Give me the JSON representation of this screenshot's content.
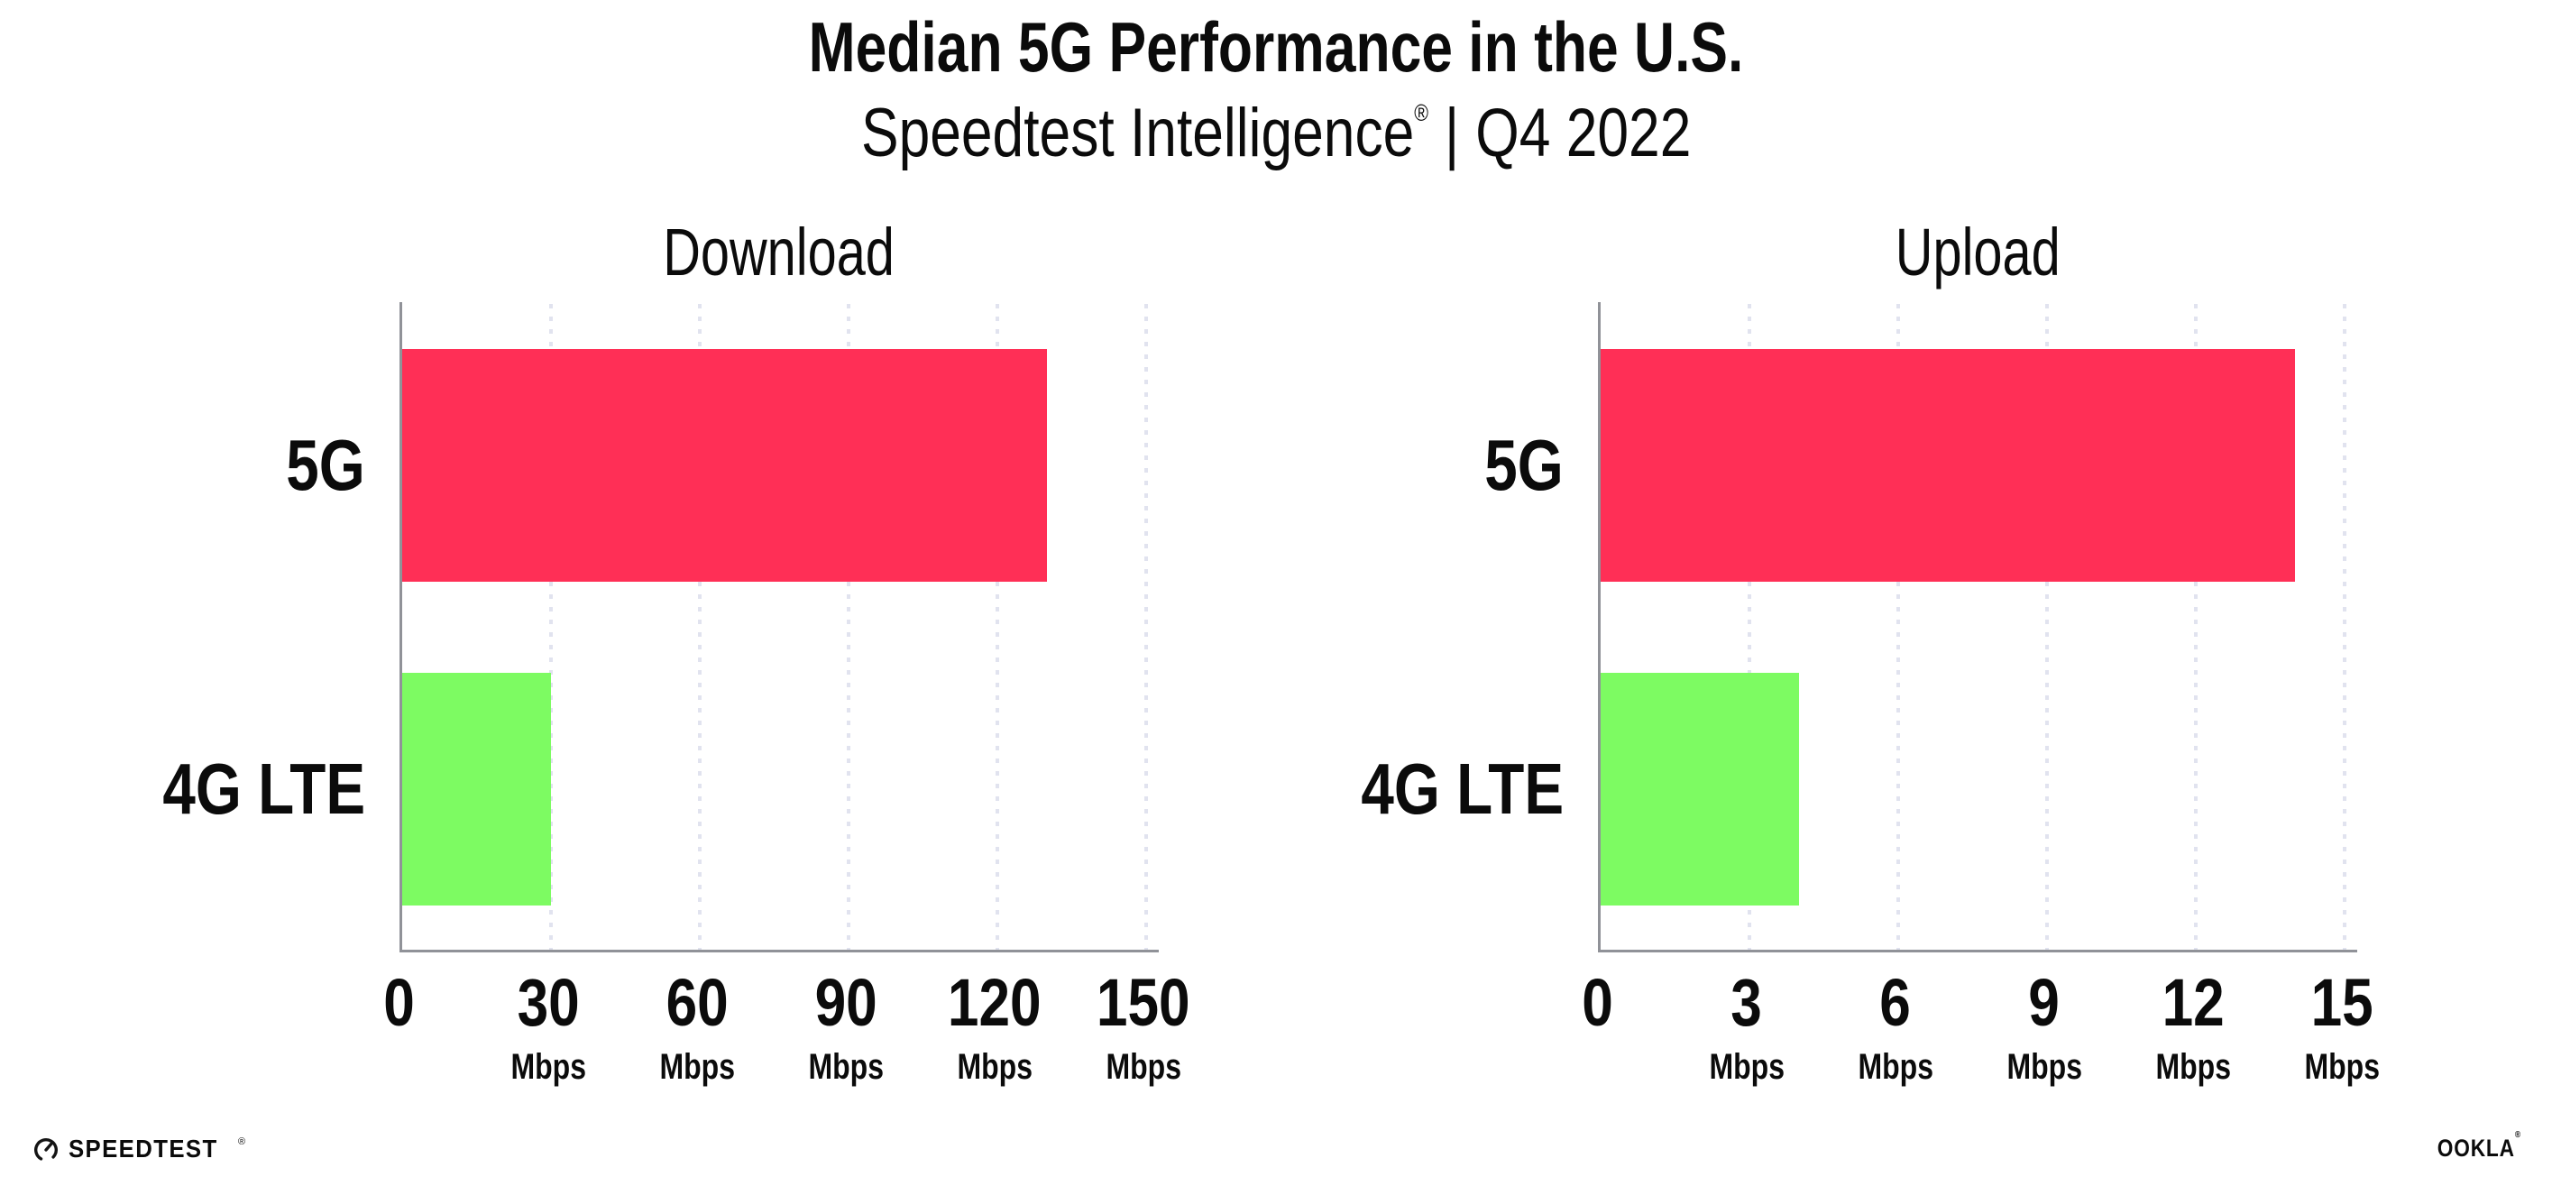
{
  "page": {
    "title": "Median 5G Performance in the U.S.",
    "subtitle_brand": "Speedtest Intelligence",
    "subtitle_registered": "®",
    "subtitle_separator": "|",
    "subtitle_period": "Q4 2022"
  },
  "chart_data": [
    {
      "type": "bar",
      "orientation": "horizontal",
      "title": "Download",
      "categories": [
        "5G",
        "4G LTE"
      ],
      "values": [
        130,
        30
      ],
      "unit": "Mbps",
      "xlim": [
        0,
        150
      ],
      "xticks": [
        0,
        30,
        60,
        90,
        120,
        150
      ],
      "bar_colors": [
        "#FF2F56",
        "#7DFB62"
      ],
      "grid": "vertical-dotted",
      "legend_position": "none"
    },
    {
      "type": "bar",
      "orientation": "horizontal",
      "title": "Upload",
      "categories": [
        "5G",
        "4G LTE"
      ],
      "values": [
        14,
        4
      ],
      "unit": "Mbps",
      "xlim": [
        0,
        15
      ],
      "xticks": [
        0,
        3,
        6,
        9,
        12,
        15
      ],
      "bar_colors": [
        "#FF2F56",
        "#7DFB62"
      ],
      "grid": "vertical-dotted",
      "legend_position": "none"
    }
  ],
  "footer": {
    "speedtest_wordmark": "SPEEDTEST",
    "speedtest_trademark": "®",
    "ookla_wordmark": "OOKLA",
    "ookla_trademark": "®"
  },
  "colors": {
    "bar_5g": "#FF2F56",
    "bar_4g_lte": "#7DFB62",
    "axis_line": "#909298",
    "gridline": "#E1E3EF",
    "text": "#0B0B0B",
    "background": "#FFFFFF"
  }
}
